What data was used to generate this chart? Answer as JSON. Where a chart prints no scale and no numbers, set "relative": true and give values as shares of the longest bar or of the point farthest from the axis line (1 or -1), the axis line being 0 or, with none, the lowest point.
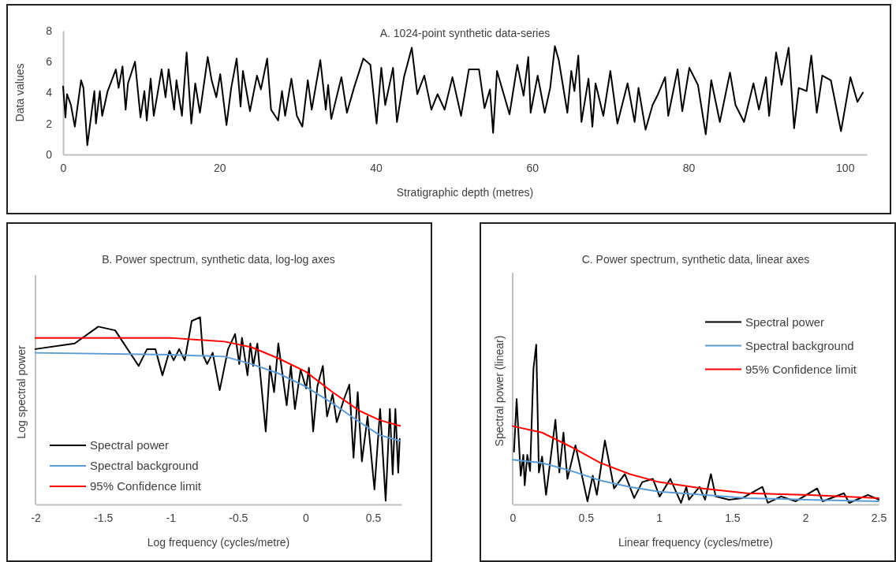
{
  "chart_data": [
    {
      "type": "line",
      "title": "A.  1024-point synthetic data-series",
      "xlabel": "Stratigraphic depth (metres)",
      "ylabel": "Data values",
      "xlim": [
        0,
        102.8
      ],
      "ylim": [
        0,
        8
      ],
      "xticks": [
        0,
        20,
        40,
        60,
        80,
        100
      ],
      "yticks": [
        0,
        2,
        4,
        6,
        8
      ],
      "legend": false,
      "series": [
        {
          "color": "#000000",
          "x": [
            0,
            0.3,
            0.5,
            1.0,
            1.5,
            2.3,
            2.6,
            3.1,
            4.0,
            4.2,
            4.7,
            5.0,
            5.7,
            6.75,
            7.1,
            7.6,
            8.0,
            8.3,
            9.2,
            9.9,
            10.4,
            10.7,
            11.2,
            11.6,
            12.6,
            13.1,
            13.5,
            14.2,
            14.5,
            15.2,
            15.8,
            16.4,
            16.9,
            17.5,
            18.5,
            19.0,
            19.6,
            20.1,
            20.9,
            21.5,
            22.2,
            22.7,
            23.0,
            23.9,
            24.8,
            25.3,
            26.1,
            26.6,
            27.5,
            28.0,
            28.4,
            29.2,
            29.9,
            30.6,
            31.3,
            31.8,
            32.9,
            33.6,
            33.9,
            34.3,
            35.6,
            36.3,
            37.2,
            38.4,
            39.3,
            40.1,
            40.7,
            41.2,
            42.2,
            42.7,
            43.6,
            44.6,
            45.3,
            46.2,
            47.1,
            47.9,
            48.8,
            49.8,
            50.9,
            51.9,
            53.2,
            53.9,
            54.6,
            55.0,
            55.5,
            57.1,
            58.1,
            58.9,
            59.5,
            59.8,
            60.7,
            61.6,
            62.3,
            62.9,
            63.4,
            64.5,
            65.0,
            65.4,
            65.9,
            66.3,
            67.2,
            67.7,
            68.1,
            69.1,
            70.0,
            70.9,
            72.2,
            73.1,
            73.6,
            74.5,
            75.4,
            76.1,
            77.0,
            77.4,
            78.6,
            79.2,
            80.1,
            81.2,
            82.2,
            82.9,
            84.0,
            85.3,
            86.0,
            87.1,
            88.3,
            89.0,
            89.9,
            90.3,
            91.2,
            91.9,
            92.8,
            93.5,
            94.1,
            95.1,
            95.7,
            96.4,
            97.1,
            98.2,
            99.5,
            100.7,
            101.6,
            102.3
          ],
          "values": [
            4.4,
            2.4,
            3.9,
            3.2,
            1.8,
            4.8,
            4.3,
            0.6,
            4.1,
            2.0,
            4.1,
            2.5,
            4.1,
            5.5,
            4.3,
            5.7,
            2.9,
            4.6,
            6.0,
            2.4,
            4.1,
            2.2,
            4.9,
            2.5,
            5.5,
            3.7,
            5.5,
            2.9,
            4.8,
            2.5,
            6.6,
            2.0,
            4.6,
            2.7,
            6.3,
            4.8,
            3.7,
            5.2,
            1.9,
            4.3,
            6.2,
            3.1,
            5.4,
            2.8,
            5.1,
            4.2,
            6.2,
            2.9,
            2.2,
            4.1,
            2.5,
            4.9,
            2.5,
            1.8,
            4.8,
            2.9,
            6.1,
            2.9,
            4.5,
            2.3,
            5.0,
            2.7,
            4.3,
            6.2,
            5.8,
            2.0,
            5.6,
            3.2,
            5.6,
            2.1,
            5.0,
            6.9,
            3.9,
            5.1,
            2.9,
            3.9,
            2.9,
            5.0,
            2.5,
            5.5,
            5.5,
            3.0,
            4.2,
            1.4,
            5.4,
            2.6,
            5.8,
            3.8,
            6.3,
            2.7,
            5.1,
            2.7,
            4.3,
            7.0,
            6.1,
            2.7,
            5.4,
            4.1,
            6.4,
            2.1,
            4.9,
            1.8,
            4.6,
            2.5,
            5.4,
            2.0,
            4.6,
            2.1,
            4.3,
            1.6,
            3.2,
            3.9,
            5.0,
            2.5,
            5.5,
            2.8,
            5.6,
            4.5,
            1.3,
            4.8,
            2.1,
            5.3,
            3.2,
            2.1,
            4.6,
            2.9,
            5.0,
            2.5,
            6.6,
            4.5,
            6.9,
            1.7,
            4.3,
            4.1,
            6.4,
            2.7,
            5.1,
            4.8,
            1.5,
            5.0,
            3.4,
            4.0
          ]
        }
      ]
    },
    {
      "type": "line",
      "title": "B.  Power spectrum, synthetic data, log-log axes",
      "xlabel": "Log frequency (cycles/metre)",
      "ylabel": "Log spectral power",
      "relative": true,
      "xlim": [
        -2,
        0.71
      ],
      "xticks": [
        -2,
        -1.5,
        -1,
        -0.5,
        0,
        0.5
      ],
      "tick_labels": "x",
      "legend": "bottom left",
      "series": [
        {
          "name": "Spectral power",
          "color": "#000000",
          "x": [
            -2,
            -1.71,
            -1.535,
            -1.41,
            -1.236,
            -1.174,
            -1.112,
            -1.06,
            -1.008,
            -0.977,
            -0.936,
            -0.895,
            -0.843,
            -0.781,
            -0.76,
            -0.729,
            -0.688,
            -0.636,
            -0.574,
            -0.522,
            -0.491,
            -0.471,
            -0.43,
            -0.409,
            -0.388,
            -0.357,
            -0.295,
            -0.264,
            -0.233,
            -0.202,
            -0.14,
            -0.109,
            -0.079,
            -0.037,
            0.004,
            0.025,
            0.056,
            0.087,
            0.128,
            0.159,
            0.2,
            0.231,
            0.283,
            0.324,
            0.355,
            0.386,
            0.417,
            0.459,
            0.51,
            0.552,
            0.593,
            0.624,
            0.645,
            0.665,
            0.686,
            0.697
          ],
          "values": [
            0.83,
            0.86,
            0.95,
            0.93,
            0.74,
            0.83,
            0.83,
            0.69,
            0.82,
            0.77,
            0.83,
            0.77,
            0.98,
            1,
            0.8,
            0.75,
            0.81,
            0.61,
            0.83,
            0.91,
            0.75,
            0.89,
            0.69,
            0.86,
            0.74,
            0.86,
            0.39,
            0.74,
            0.6,
            0.86,
            0.53,
            0.74,
            0.51,
            0.72,
            0.62,
            0.73,
            0.39,
            0.63,
            0.74,
            0.47,
            0.59,
            0.44,
            0.56,
            0.64,
            0.25,
            0.6,
            0.23,
            0.47,
            0.08,
            0.51,
            0.02,
            0.51,
            0.16,
            0.51,
            0.17,
            0.35
          ]
        },
        {
          "name": "Spectral background",
          "color": "#5b9bd5",
          "x": [
            -2,
            -1,
            -0.6,
            -0.4,
            -0.2,
            0,
            0.2,
            0.4,
            0.55,
            0.7
          ],
          "values": [
            0.81,
            0.8,
            0.79,
            0.75,
            0.7,
            0.63,
            0.54,
            0.44,
            0.37,
            0.34
          ]
        },
        {
          "name": "95% Confidence limit",
          "color": "#ff0000",
          "x": [
            -2,
            -1,
            -0.6,
            -0.4,
            -0.2,
            0,
            0.2,
            0.4,
            0.55,
            0.7
          ],
          "values": [
            0.89,
            0.89,
            0.87,
            0.84,
            0.78,
            0.71,
            0.6,
            0.5,
            0.45,
            0.42
          ]
        }
      ]
    },
    {
      "type": "line",
      "title": "C.  Power spectrum, synthetic data, linear axes",
      "xlabel": "Linear frequency (cycles/metre)",
      "ylabel": "Spectral power (linear)",
      "relative": true,
      "xlim": [
        0,
        2.5
      ],
      "xticks": [
        0,
        0.5,
        1,
        1.5,
        2,
        2.5
      ],
      "tick_labels": "x",
      "legend": "right",
      "series": [
        {
          "name": "Spectral power",
          "color": "#000000",
          "x": [
            0.009,
            0.027,
            0.055,
            0.073,
            0.082,
            0.1,
            0.119,
            0.142,
            0.161,
            0.179,
            0.201,
            0.228,
            0.292,
            0.319,
            0.347,
            0.374,
            0.429,
            0.511,
            0.547,
            0.575,
            0.63,
            0.693,
            0.766,
            0.83,
            0.885,
            0.958,
            1.004,
            1.077,
            1.15,
            1.186,
            1.204,
            1.277,
            1.314,
            1.354,
            1.387,
            1.478,
            1.569,
            1.706,
            1.743,
            1.834,
            1.934,
            2.08,
            2.117,
            2.263,
            2.299,
            2.427,
            2.5
          ],
          "values": [
            0.33,
            0.66,
            0.18,
            0.31,
            0.12,
            0.31,
            0.21,
            0.85,
            1,
            0.2,
            0.3,
            0.06,
            0.53,
            0.2,
            0.45,
            0.16,
            0.37,
            0.02,
            0.18,
            0.06,
            0.4,
            0.1,
            0.19,
            0.04,
            0.14,
            0.16,
            0.05,
            0.16,
            0.01,
            0.11,
            0.03,
            0.11,
            0.03,
            0.19,
            0.05,
            0.03,
            0.04,
            0.11,
            0.01,
            0.05,
            0.02,
            0.1,
            0.02,
            0.07,
            0.01,
            0.06,
            0.03
          ]
        },
        {
          "name": "Spectral background",
          "color": "#5b9bd5",
          "x": [
            0,
            0.2,
            0.4,
            0.6,
            0.8,
            1.0,
            1.3,
            1.6,
            2.0,
            2.5
          ],
          "values": [
            0.28,
            0.26,
            0.21,
            0.15,
            0.11,
            0.08,
            0.06,
            0.04,
            0.03,
            0.02
          ]
        },
        {
          "name": "95% Confidence limit",
          "color": "#ff0000",
          "x": [
            0,
            0.2,
            0.4,
            0.6,
            0.8,
            1.0,
            1.3,
            1.6,
            2.0,
            2.5
          ],
          "values": [
            0.49,
            0.45,
            0.36,
            0.26,
            0.19,
            0.14,
            0.1,
            0.07,
            0.06,
            0.04
          ]
        }
      ]
    }
  ]
}
